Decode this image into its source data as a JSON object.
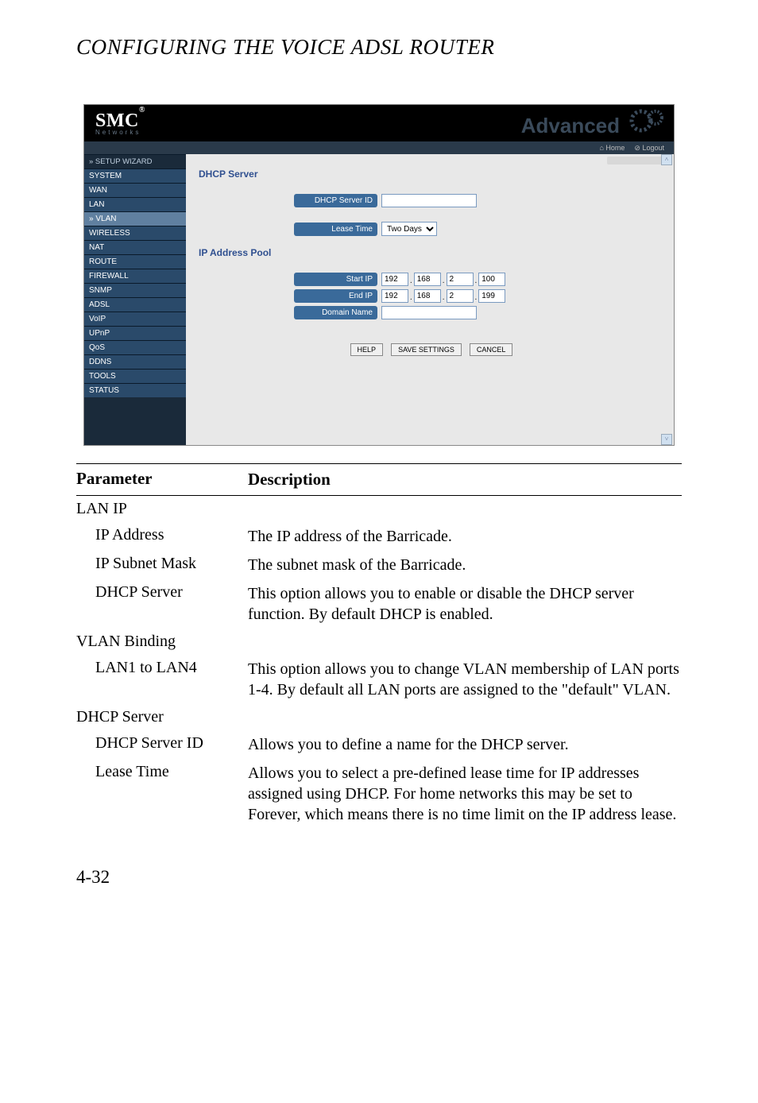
{
  "chapter_title": "CONFIGURING THE VOICE ADSL ROUTER",
  "screenshot": {
    "logo_main": "SMC",
    "logo_reg": "®",
    "logo_sub": "Networks",
    "advanced": "Advanced",
    "topbar_home": "⌂ Home",
    "topbar_logout": "⊘ Logout",
    "sidebar": {
      "setup": "» SETUP WIZARD",
      "items": [
        "SYSTEM",
        "WAN",
        "LAN",
        "» VLAN",
        "WIRELESS",
        "NAT",
        "ROUTE",
        "FIREWALL",
        "SNMP",
        "ADSL",
        "VoIP",
        "UPnP",
        "QoS",
        "DDNS",
        "TOOLS",
        "STATUS"
      ]
    },
    "headings": {
      "dhcp": "DHCP Server",
      "pool": "IP Address Pool"
    },
    "fields": {
      "server_id_label": "DHCP Server ID",
      "lease_label": "Lease Time",
      "lease_value": "Two Days",
      "start_label": "Start IP",
      "end_label": "End IP",
      "domain_label": "Domain Name",
      "start_ip": [
        "192",
        "168",
        "2",
        "100"
      ],
      "end_ip": [
        "192",
        "168",
        "2",
        "199"
      ]
    },
    "buttons": {
      "help": "HELP",
      "save": "SAVE SETTINGS",
      "cancel": "CANCEL"
    }
  },
  "table": {
    "header_p": "Parameter",
    "header_d": "Description",
    "rows": [
      {
        "type": "section",
        "p": "LAN IP",
        "d": ""
      },
      {
        "type": "sub",
        "p": "IP Address",
        "d": "The IP address of the Barricade."
      },
      {
        "type": "sub",
        "p": "IP Subnet Mask",
        "d": "The subnet mask of the Barricade."
      },
      {
        "type": "sub",
        "p": "DHCP Server",
        "d": "This option allows you to enable or disable the DHCP server function. By default DHCP is enabled."
      },
      {
        "type": "section",
        "p": "VLAN Binding",
        "d": ""
      },
      {
        "type": "sub",
        "p": "LAN1 to LAN4",
        "d": "This option allows you to change VLAN membership of LAN ports 1-4. By default all LAN ports are assigned to the \"default\" VLAN."
      },
      {
        "type": "section",
        "p": "DHCP Server",
        "d": ""
      },
      {
        "type": "sub",
        "p": "DHCP Server ID",
        "d": "Allows you to define a name for the DHCP server."
      },
      {
        "type": "sub",
        "p": "Lease Time",
        "d": "Allows you to select a pre-defined lease time for IP addresses assigned using DHCP. For home networks this may be set to Forever, which means there is no time limit on the IP address lease."
      }
    ]
  },
  "pagenum": "4-32"
}
